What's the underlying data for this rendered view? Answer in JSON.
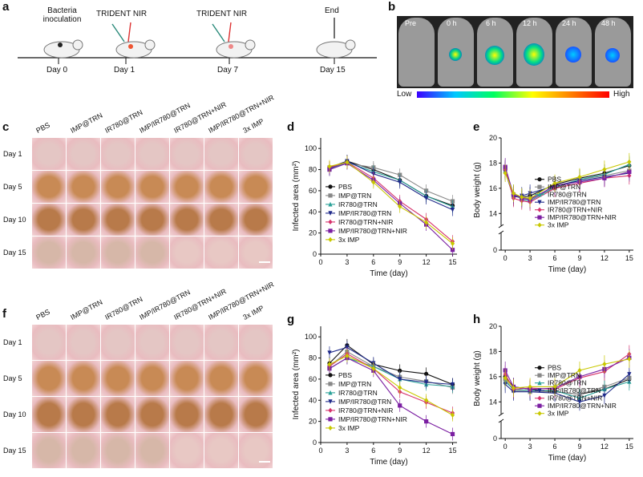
{
  "panel_labels": {
    "a": "a",
    "b": "b",
    "c": "c",
    "d": "d",
    "e": "e",
    "f": "f",
    "g": "g",
    "h": "h"
  },
  "timeline": {
    "bacteria": "Bacteria\ninoculation",
    "trident1": "TRIDENT NIR",
    "trident2": "TRIDENT NIR",
    "end": "End",
    "days": [
      "Day 0",
      "Day 1",
      "Day 7",
      "Day 15"
    ]
  },
  "imaging": {
    "times": [
      "Pre",
      "0 h",
      "6 h",
      "12 h",
      "24 h",
      "48 h"
    ],
    "scale_low": "Low",
    "scale_high": "High",
    "colors": [
      "#1a1aff",
      "#00c8ff",
      "#00ff60",
      "#ffff00",
      "#ff8000",
      "#ff0000"
    ]
  },
  "photo_grid_c": {
    "columns": [
      "PBS",
      "IMP@TRN",
      "IR780@TRN",
      "IMP/IR780@TRN",
      "IR780@TRN+NIR",
      "IMP/IR780@TRN+NIR",
      "3x IMP"
    ],
    "rows": [
      "Day 1",
      "Day 5",
      "Day 10",
      "Day 15"
    ]
  },
  "photo_grid_f": {
    "columns": [
      "PBS",
      "IMP@TRN",
      "IR780@TRN",
      "IMP/IR780@TRN",
      "IR780@TRN+NIR",
      "IMP/IR780@TRN+NIR",
      "3x IMP"
    ],
    "rows": [
      "Day 1",
      "Day 5",
      "Day 10",
      "Day 15"
    ]
  },
  "legend": [
    "PBS",
    "IMP@TRN",
    "IR780@TRN",
    "IMP/IR780@TRN",
    "IR780@TRN+NIR",
    "IMP/IR780@TRN+NIR",
    "3x IMP"
  ],
  "series_colors": [
    "#111111",
    "#888888",
    "#2aa198",
    "#1f2a8a",
    "#d6336c",
    "#7b1fa2",
    "#c8c800"
  ],
  "chart_data": [
    {
      "id": "d",
      "type": "line",
      "xlabel": "Time (day)",
      "ylabel": "Infected area (mm²)",
      "x": [
        1,
        3,
        6,
        9,
        12,
        15
      ],
      "xticks": [
        0,
        3,
        6,
        9,
        12,
        15
      ],
      "yticks": [
        0,
        20,
        40,
        60,
        80,
        100
      ],
      "xlim": [
        0,
        15.5
      ],
      "ylim": [
        0,
        110
      ],
      "series": [
        {
          "name": "PBS",
          "values": [
            82,
            88,
            80,
            70,
            55,
            46
          ]
        },
        {
          "name": "IMP@TRN",
          "values": [
            82,
            86,
            82,
            75,
            60,
            50
          ]
        },
        {
          "name": "IR780@TRN",
          "values": [
            80,
            87,
            78,
            70,
            55,
            45
          ]
        },
        {
          "name": "IMP/IR780@TRN",
          "values": [
            81,
            88,
            76,
            68,
            53,
            42
          ]
        },
        {
          "name": "IR780@TRN+NIR",
          "values": [
            82,
            87,
            72,
            50,
            33,
            12
          ]
        },
        {
          "name": "IMP/IR780@TRN+NIR",
          "values": [
            80,
            86,
            70,
            48,
            28,
            4
          ]
        },
        {
          "name": "3x IMP",
          "values": [
            83,
            87,
            68,
            45,
            30,
            10
          ]
        }
      ]
    },
    {
      "id": "e",
      "type": "line",
      "xlabel": "Time (day)",
      "ylabel": "Body weight (g)",
      "x": [
        0,
        1,
        2,
        3,
        6,
        9,
        12,
        15
      ],
      "xticks": [
        0,
        3,
        6,
        9,
        12,
        15
      ],
      "yticks_upper": [
        14,
        16,
        18,
        20
      ],
      "ytick_lower": [
        0
      ],
      "series": [
        {
          "name": "PBS",
          "values": [
            17.5,
            15.5,
            15.3,
            15.4,
            16.3,
            16.8,
            17.2,
            17.8
          ]
        },
        {
          "name": "IMP@TRN",
          "values": [
            17.6,
            15.4,
            15.2,
            15.2,
            16.0,
            16.7,
            17.0,
            17.4
          ]
        },
        {
          "name": "IR780@TRN",
          "values": [
            17.4,
            15.6,
            15.1,
            15.0,
            16.1,
            16.7,
            17.1,
            17.9
          ]
        },
        {
          "name": "IMP/IR780@TRN",
          "values": [
            17.3,
            15.3,
            15.4,
            15.6,
            16.2,
            16.6,
            16.9,
            17.2
          ]
        },
        {
          "name": "IR780@TRN+NIR",
          "values": [
            17.5,
            15.2,
            15.0,
            14.9,
            16.0,
            16.4,
            16.8,
            17.0
          ]
        },
        {
          "name": "IMP/IR780@TRN+NIR",
          "values": [
            17.7,
            15.5,
            15.2,
            15.1,
            16.2,
            16.5,
            16.8,
            17.3
          ]
        },
        {
          "name": "3x IMP",
          "values": [
            17.2,
            15.6,
            15.3,
            15.2,
            16.4,
            16.9,
            17.5,
            18.1
          ]
        }
      ]
    },
    {
      "id": "g",
      "type": "line",
      "xlabel": "Time (day)",
      "ylabel": "Infected area (mm²)",
      "x": [
        1,
        3,
        6,
        9,
        12,
        15
      ],
      "xticks": [
        0,
        3,
        6,
        9,
        12,
        15
      ],
      "yticks": [
        0,
        20,
        40,
        60,
        80,
        100
      ],
      "xlim": [
        0,
        15.5
      ],
      "ylim": [
        0,
        110
      ],
      "series": [
        {
          "name": "PBS",
          "values": [
            75,
            92,
            74,
            68,
            65,
            55
          ]
        },
        {
          "name": "IMP@TRN",
          "values": [
            72,
            86,
            72,
            62,
            58,
            52
          ]
        },
        {
          "name": "IR780@TRN",
          "values": [
            70,
            80,
            72,
            60,
            55,
            53
          ]
        },
        {
          "name": "IMP/IR780@TRN",
          "values": [
            85,
            90,
            75,
            60,
            57,
            55
          ]
        },
        {
          "name": "IR780@TRN+NIR",
          "values": [
            72,
            84,
            70,
            48,
            38,
            28
          ]
        },
        {
          "name": "IMP/IR780@TRN+NIR",
          "values": [
            70,
            80,
            68,
            35,
            20,
            8
          ]
        },
        {
          "name": "3x IMP",
          "values": [
            74,
            82,
            70,
            52,
            40,
            26
          ]
        }
      ]
    },
    {
      "id": "h",
      "type": "line",
      "xlabel": "Time (day)",
      "ylabel": "Body weight (g)",
      "x": [
        0,
        1,
        3,
        6,
        9,
        12,
        15
      ],
      "xticks": [
        0,
        3,
        6,
        9,
        12,
        15
      ],
      "yticks_upper": [
        14,
        16,
        18,
        20
      ],
      "ytick_lower": [
        0
      ],
      "series": [
        {
          "name": "PBS",
          "values": [
            16.0,
            15.2,
            15.0,
            14.8,
            14.6,
            15.0,
            15.8
          ]
        },
        {
          "name": "IMP@TRN",
          "values": [
            15.8,
            14.9,
            14.8,
            14.8,
            14.6,
            15.2,
            15.9
          ]
        },
        {
          "name": "IR780@TRN",
          "values": [
            15.6,
            15.0,
            14.9,
            14.9,
            14.3,
            15.0,
            15.6
          ]
        },
        {
          "name": "IMP/IR780@TRN",
          "values": [
            15.4,
            14.8,
            14.8,
            14.7,
            14.0,
            14.5,
            16.2
          ]
        },
        {
          "name": "IR780@TRN+NIR",
          "values": [
            16.2,
            15.0,
            15.1,
            15.0,
            15.9,
            16.4,
            17.8
          ]
        },
        {
          "name": "IMP/IR780@TRN+NIR",
          "values": [
            16.5,
            15.2,
            15.0,
            15.1,
            16.0,
            16.6,
            17.5
          ]
        },
        {
          "name": "3x IMP",
          "values": [
            15.9,
            15.1,
            15.2,
            15.2,
            16.5,
            17.0,
            17.4
          ]
        }
      ]
    }
  ]
}
